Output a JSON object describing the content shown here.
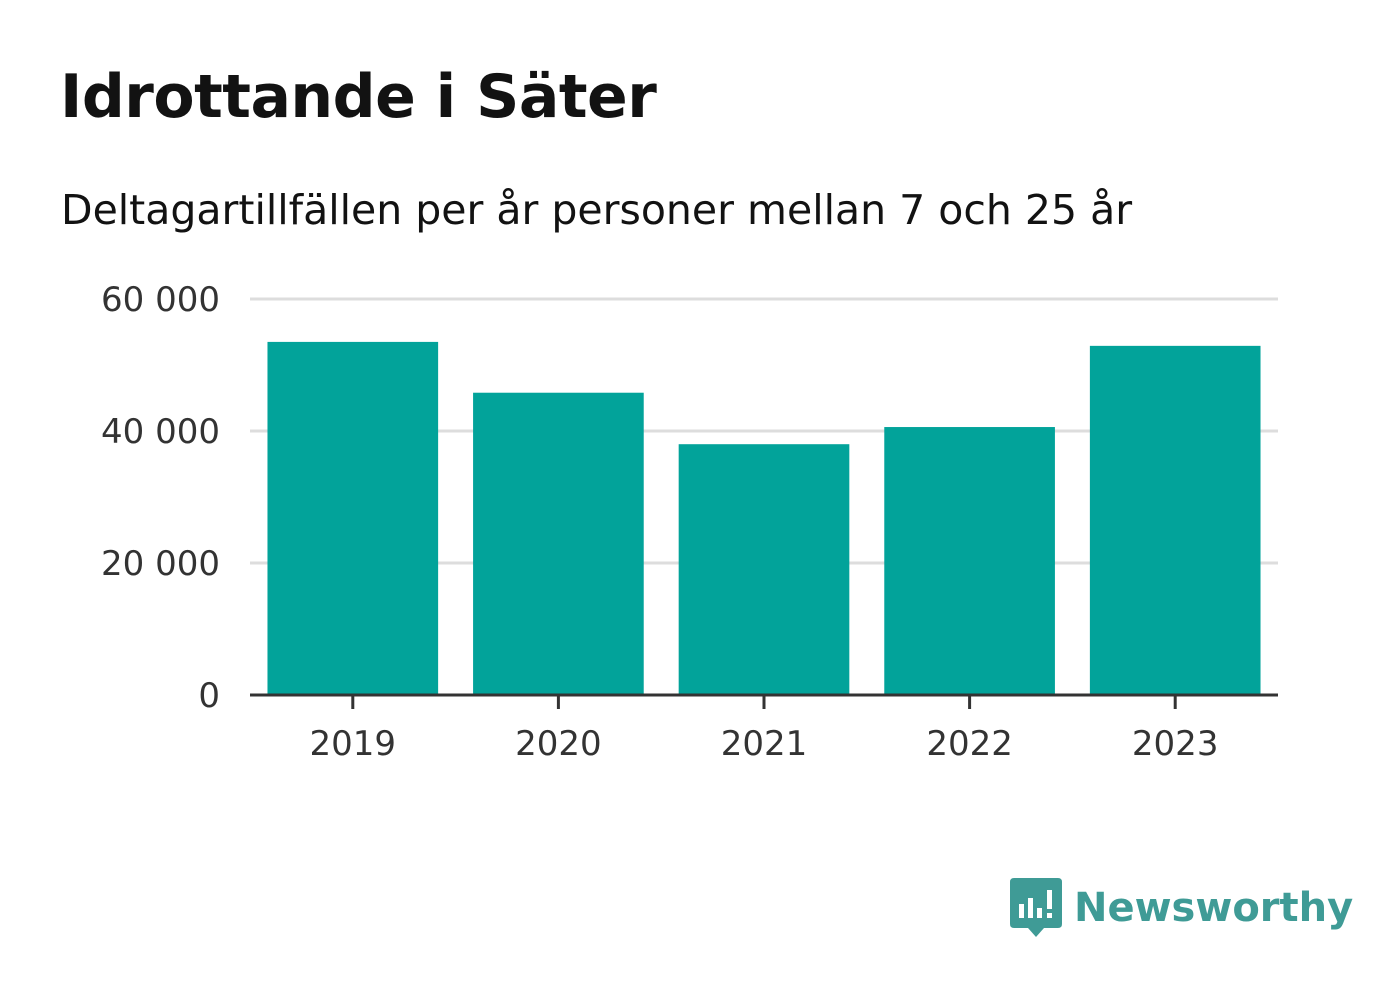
{
  "title": "Idrottande i Säter",
  "subtitle": "Deltagartillfällen per år personer mellan 7 och 25 år",
  "brand": {
    "name": "Newsworthy",
    "color": "#3f9b96",
    "icon": "newsworthy-logo-icon"
  },
  "colors": {
    "bar": "#02a39a",
    "grid": "#dddddd",
    "axis": "#333333"
  },
  "chart_data": {
    "type": "bar",
    "title": "Idrottande i Säter",
    "subtitle": "Deltagartillfällen per år personer mellan 7 och 25 år",
    "xlabel": "",
    "ylabel": "",
    "categories": [
      "2019",
      "2020",
      "2021",
      "2022",
      "2023"
    ],
    "values": [
      53500,
      45800,
      38000,
      40600,
      52900
    ],
    "ylim": [
      0,
      60000
    ],
    "yticks": [
      0,
      20000,
      40000,
      60000
    ],
    "ytick_labels": [
      "0",
      "20 000",
      "40 000",
      "60 000"
    ],
    "grid": true,
    "legend": "none"
  }
}
